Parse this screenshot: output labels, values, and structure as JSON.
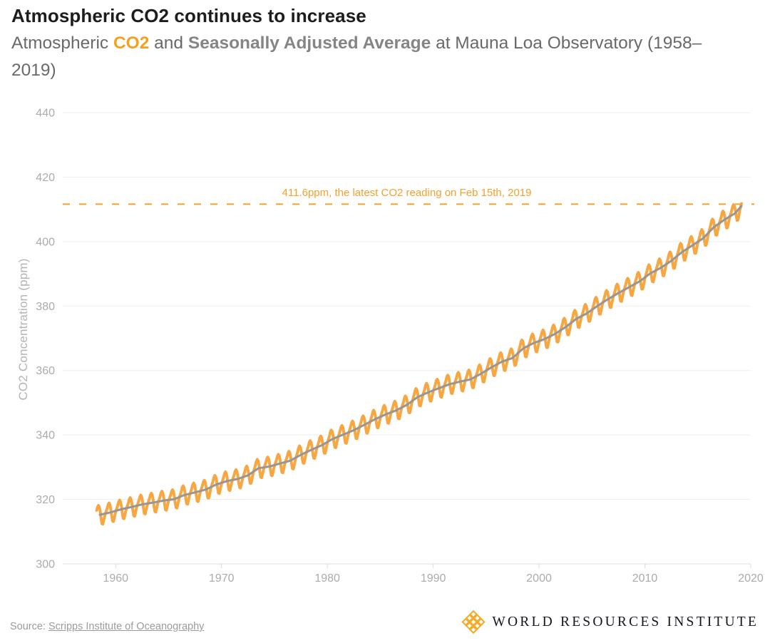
{
  "header": {
    "title": "Atmospheric CO2 continues to increase",
    "subtitle": {
      "pre": "Atmospheric ",
      "co2": "CO2",
      "mid": " and ",
      "highlight": "Seasonally Adjusted Average",
      "post": " at Mauna Loa Observatory (1958–2019)"
    }
  },
  "footer": {
    "source_label": "Source: ",
    "source_link": "Scripps Institute of Oceanography",
    "logo_text": "WORLD RESOURCES INSTITUTE"
  },
  "colors": {
    "accent_orange": "#F5A01E",
    "line_orange": "#F7A742",
    "line_gray": "#969696",
    "brand_yellow": "#F2AC29",
    "tick_label_gray": "#ABABAB",
    "gridline_gray": "#EDEDED"
  },
  "chart_data": {
    "type": "line",
    "title": "Atmospheric CO2 continues to increase",
    "xlabel": "",
    "ylabel": "CO2 Concentration (ppm)",
    "xlim": [
      1955,
      2020
    ],
    "ylim": [
      300,
      440
    ],
    "x_ticks": [
      1960,
      1970,
      1980,
      1990,
      2000,
      2010,
      2020
    ],
    "y_ticks": [
      300,
      320,
      340,
      360,
      380,
      400,
      420,
      440
    ],
    "grid": "horizontal-only",
    "legend": "none (series named in subtitle)",
    "annotation": {
      "text": "411.6ppm, the latest CO2 reading on Feb 15th, 2019",
      "value": 411.6,
      "color": "#F6A02C",
      "style": "dashed-horizontal-line"
    },
    "series": [
      {
        "id": "monthly",
        "name": "Atmospheric CO2",
        "color": "#F7A742",
        "description": "Monthly CO2 with seasonal cycle, Mar 1958 - Feb 2019",
        "start": 1958.2,
        "end": 2019.13,
        "seasonal_profile": [
          0.1,
          0.8,
          1.6,
          2.6,
          3.0,
          2.4,
          0.9,
          -1.2,
          -2.9,
          -3.1,
          -2.0,
          -0.8
        ]
      },
      {
        "id": "trend",
        "name": "Seasonally Adjusted Average",
        "color": "#969696",
        "start_year": 1958,
        "values": [
          315.23,
          315.97,
          316.91,
          317.64,
          318.45,
          318.99,
          319.62,
          320.04,
          321.37,
          322.18,
          323.05,
          324.62,
          325.68,
          326.32,
          327.46,
          329.68,
          330.19,
          331.12,
          332.03,
          333.84,
          335.41,
          336.84,
          338.76,
          340.12,
          341.48,
          343.15,
          344.87,
          346.35,
          347.61,
          349.31,
          351.69,
          353.2,
          354.45,
          355.7,
          356.54,
          357.21,
          358.96,
          360.97,
          362.74,
          363.88,
          366.84,
          368.54,
          369.71,
          371.32,
          373.45,
          375.98,
          377.7,
          379.98,
          382.09,
          384.02,
          385.83,
          387.64,
          390.1,
          391.85,
          394.06,
          396.74,
          398.81,
          401.01,
          404.41,
          406.76,
          408.72
        ],
        "end": {
          "x": 2019.12,
          "value": 411.0
        }
      }
    ]
  }
}
